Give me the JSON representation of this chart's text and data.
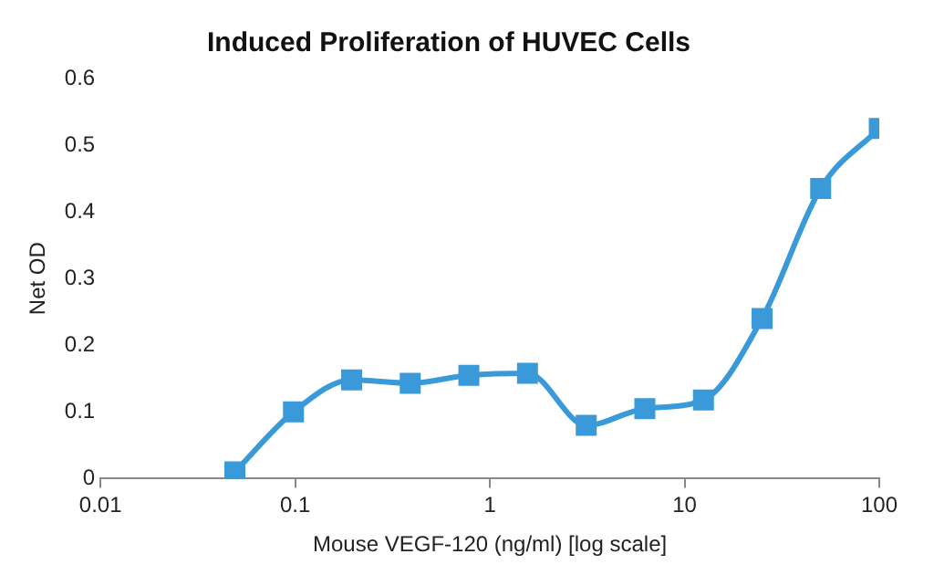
{
  "chart_data": {
    "type": "line",
    "title": "Induced Proliferation of HUVEC Cells",
    "xlabel": "Mouse VEGF-120 (ng/ml) [log scale]",
    "ylabel": "Net OD",
    "x": [
      0.049,
      0.098,
      0.195,
      0.39,
      0.78,
      1.56,
      3.125,
      6.25,
      12.5,
      25,
      50,
      100
    ],
    "series": [
      {
        "color": "#3a9ad9",
        "values": [
          0.01,
          0.1,
          0.148,
          0.143,
          0.155,
          0.158,
          0.08,
          0.105,
          0.118,
          0.24,
          0.435,
          0.525
        ]
      }
    ],
    "xlim": [
      0.01,
      100
    ],
    "xticks": [
      0.01,
      0.1,
      1,
      10,
      100
    ],
    "ylim": [
      0,
      0.6
    ],
    "yticks": [
      0,
      0.1,
      0.2,
      0.3,
      0.4,
      0.5,
      0.6
    ],
    "log": "x",
    "grid": false,
    "legend": false,
    "marker": "square",
    "line_style": "solid"
  }
}
